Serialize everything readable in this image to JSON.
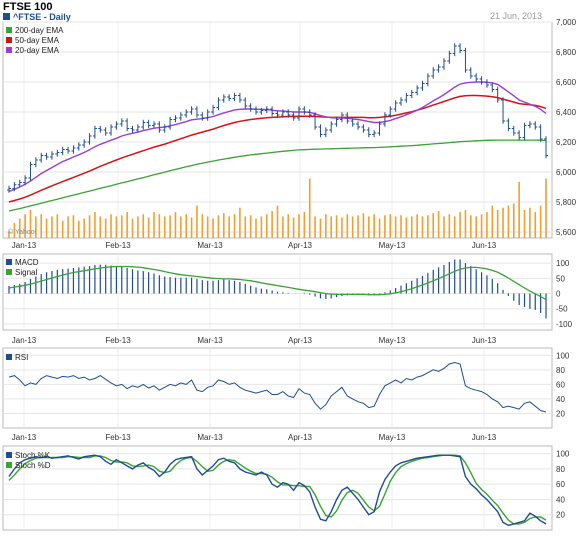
{
  "header": {
    "title": "FTSE 100",
    "symbol": "^FTSE - Daily",
    "date": "21 Jun, 2013",
    "source": "Yahoo!"
  },
  "colors": {
    "price": "#1f4e8c",
    "ema200": "#3aa335",
    "ema50": "#d41414",
    "ema20": "#9b3fd0",
    "volume": "#f0a030",
    "macd": "#1f4e8c",
    "signal": "#3aa335",
    "rsi": "#1f4e8c",
    "stochK": "#1f4e8c",
    "stochD": "#3aa335"
  },
  "chart_data": [
    {
      "type": "ohlc",
      "panel": "price",
      "legend": [
        "200-day EMA",
        "50-day EMA",
        "20-day EMA"
      ],
      "x_ticks": [
        "Jan-13",
        "Feb-13",
        "Mar-13",
        "Apr-13",
        "May-13",
        "Jun-13"
      ],
      "y_ticks": [
        5600,
        5800,
        6000,
        6200,
        6400,
        6600,
        6800,
        7000
      ],
      "y_tick_labels": [
        "5,600",
        "5,800",
        "6,000",
        "6,200",
        "6,400",
        "6,600",
        "6,800",
        "7,000"
      ],
      "ylim": [
        5560,
        7000
      ],
      "close": [
        5890,
        5915,
        5930,
        5960,
        6050,
        6080,
        6110,
        6100,
        6120,
        6130,
        6150,
        6140,
        6160,
        6180,
        6200,
        6240,
        6290,
        6280,
        6260,
        6300,
        6320,
        6340,
        6290,
        6280,
        6300,
        6330,
        6310,
        6320,
        6280,
        6300,
        6350,
        6360,
        6380,
        6400,
        6420,
        6380,
        6360,
        6400,
        6430,
        6480,
        6500,
        6490,
        6510,
        6480,
        6440,
        6420,
        6400,
        6410,
        6420,
        6390,
        6380,
        6400,
        6380,
        6360,
        6420,
        6400,
        6380,
        6300,
        6250,
        6280,
        6320,
        6350,
        6380,
        6340,
        6320,
        6300,
        6280,
        6250,
        6260,
        6320,
        6380,
        6420,
        6460,
        6480,
        6510,
        6530,
        6560,
        6590,
        6640,
        6680,
        6700,
        6740,
        6790,
        6840,
        6810,
        6680,
        6640,
        6620,
        6600,
        6580,
        6550,
        6480,
        6340,
        6290,
        6260,
        6230,
        6310,
        6320,
        6300,
        6220,
        6110
      ],
      "ema200": [
        5740,
        5748,
        5756,
        5765,
        5774,
        5783,
        5792,
        5801,
        5810,
        5819,
        5828,
        5837,
        5846,
        5855,
        5864,
        5873,
        5882,
        5891,
        5900,
        5909,
        5918,
        5927,
        5936,
        5945,
        5954,
        5963,
        5972,
        5981,
        5990,
        5999,
        6008,
        6017,
        6026,
        6035,
        6043,
        6051,
        6059,
        6066,
        6073,
        6080,
        6086,
        6092,
        6098,
        6104,
        6109,
        6114,
        6118,
        6122,
        6126,
        6130,
        6134,
        6138,
        6141,
        6144,
        6147,
        6149,
        6151,
        6152,
        6153,
        6154,
        6155,
        6156,
        6157,
        6158,
        6159,
        6160,
        6161,
        6162,
        6163,
        6164,
        6166,
        6168,
        6170,
        6172,
        6174,
        6176,
        6178,
        6181,
        6184,
        6187,
        6190,
        6193,
        6196,
        6199,
        6202,
        6204,
        6206,
        6208,
        6210,
        6211,
        6212,
        6213,
        6213,
        6213,
        6213,
        6213,
        6213,
        6213,
        6213,
        6212,
        6210
      ],
      "ema50": [
        5800,
        5810,
        5820,
        5832,
        5846,
        5862,
        5878,
        5893,
        5908,
        5922,
        5936,
        5950,
        5964,
        5978,
        5992,
        6006,
        6022,
        6038,
        6052,
        6066,
        6080,
        6094,
        6106,
        6118,
        6130,
        6142,
        6154,
        6166,
        6176,
        6186,
        6198,
        6210,
        6222,
        6234,
        6246,
        6256,
        6266,
        6276,
        6286,
        6298,
        6310,
        6320,
        6330,
        6338,
        6344,
        6350,
        6354,
        6358,
        6362,
        6364,
        6366,
        6368,
        6370,
        6370,
        6372,
        6372,
        6372,
        6370,
        6368,
        6366,
        6364,
        6364,
        6364,
        6364,
        6364,
        6364,
        6364,
        6362,
        6362,
        6364,
        6368,
        6372,
        6378,
        6386,
        6394,
        6402,
        6412,
        6422,
        6434,
        6446,
        6458,
        6470,
        6482,
        6494,
        6504,
        6508,
        6510,
        6510,
        6508,
        6506,
        6502,
        6496,
        6486,
        6476,
        6466,
        6456,
        6452,
        6448,
        6444,
        6436,
        6424
      ],
      "ema20": [
        5870,
        5885,
        5900,
        5918,
        5940,
        5965,
        5990,
        6010,
        6030,
        6050,
        6070,
        6085,
        6100,
        6115,
        6130,
        6148,
        6168,
        6185,
        6198,
        6212,
        6225,
        6240,
        6250,
        6258,
        6266,
        6276,
        6284,
        6292,
        6296,
        6300,
        6308,
        6316,
        6326,
        6336,
        6348,
        6352,
        6356,
        6362,
        6370,
        6382,
        6394,
        6404,
        6414,
        6418,
        6420,
        6420,
        6418,
        6418,
        6416,
        6412,
        6408,
        6406,
        6404,
        6400,
        6400,
        6400,
        6398,
        6388,
        6376,
        6368,
        6362,
        6360,
        6360,
        6358,
        6354,
        6350,
        6344,
        6336,
        6330,
        6330,
        6336,
        6344,
        6356,
        6368,
        6382,
        6396,
        6412,
        6430,
        6452,
        6474,
        6494,
        6516,
        6540,
        6566,
        6586,
        6594,
        6598,
        6600,
        6600,
        6598,
        6594,
        6584,
        6560,
        6534,
        6508,
        6480,
        6466,
        6452,
        6438,
        6418,
        6390
      ],
      "volume": [
        0.06,
        0.14,
        0.18,
        0.22,
        0.26,
        0.2,
        0.22,
        0.18,
        0.2,
        0.22,
        0.16,
        0.2,
        0.21,
        0.16,
        0.18,
        0.21,
        0.24,
        0.2,
        0.18,
        0.22,
        0.2,
        0.21,
        0.24,
        0.18,
        0.2,
        0.22,
        0.19,
        0.24,
        0.22,
        0.2,
        0.21,
        0.24,
        0.2,
        0.22,
        0.19,
        0.3,
        0.22,
        0.2,
        0.18,
        0.21,
        0.23,
        0.2,
        0.22,
        0.28,
        0.2,
        0.21,
        0.18,
        0.2,
        0.22,
        0.25,
        0.3,
        0.2,
        0.22,
        0.19,
        0.22,
        0.24,
        0.55,
        0.2,
        0.18,
        0.22,
        0.2,
        0.21,
        0.19,
        0.22,
        0.2,
        0.21,
        0.23,
        0.2,
        0.22,
        0.18,
        0.21,
        0.22,
        0.2,
        0.21,
        0.19,
        0.2,
        0.22,
        0.2,
        0.21,
        0.23,
        0.25,
        0.2,
        0.22,
        0.2,
        0.24,
        0.26,
        0.21,
        0.2,
        0.22,
        0.24,
        0.3,
        0.26,
        0.28,
        0.3,
        0.32,
        0.52,
        0.26,
        0.28,
        0.24,
        0.3,
        0.55
      ]
    },
    {
      "type": "bar+line",
      "panel": "macd",
      "legend": [
        "MACD",
        "Signal"
      ],
      "y_ticks": [
        -100,
        -50,
        0,
        50,
        100
      ],
      "ylim": [
        -120,
        130
      ],
      "macd": [
        25,
        28,
        32,
        38,
        48,
        56,
        64,
        70,
        74,
        78,
        80,
        82,
        84,
        86,
        88,
        90,
        94,
        95,
        94,
        92,
        90,
        88,
        84,
        80,
        76,
        74,
        70,
        66,
        60,
        56,
        54,
        52,
        52,
        52,
        52,
        48,
        44,
        42,
        42,
        44,
        46,
        44,
        42,
        38,
        32,
        26,
        20,
        16,
        14,
        10,
        6,
        4,
        2,
        0,
        0,
        -2,
        -4,
        -10,
        -16,
        -18,
        -16,
        -12,
        -8,
        -6,
        -4,
        -4,
        -4,
        -6,
        -6,
        -2,
        4,
        10,
        18,
        26,
        34,
        42,
        50,
        58,
        68,
        78,
        86,
        94,
        104,
        112,
        112,
        100,
        90,
        80,
        70,
        60,
        48,
        34,
        12,
        -8,
        -24,
        -38,
        -44,
        -50,
        -54,
        -64,
        -82
      ],
      "signal": [
        18,
        21,
        24,
        27,
        31,
        36,
        41,
        46,
        51,
        56,
        61,
        65,
        69,
        72,
        75,
        78,
        81,
        84,
        86,
        88,
        89,
        89,
        89,
        88,
        87,
        85,
        82,
        79,
        76,
        72,
        68,
        65,
        62,
        60,
        58,
        56,
        54,
        52,
        50,
        49,
        48,
        48,
        47,
        46,
        44,
        42,
        39,
        35,
        32,
        29,
        26,
        23,
        20,
        17,
        14,
        11,
        9,
        6,
        3,
        0,
        -2,
        -3,
        -3,
        -3,
        -3,
        -3,
        -3,
        -4,
        -4,
        -4,
        -3,
        -1,
        2,
        6,
        11,
        16,
        22,
        28,
        35,
        42,
        49,
        57,
        65,
        73,
        80,
        84,
        86,
        86,
        84,
        81,
        76,
        70,
        61,
        51,
        40,
        29,
        18,
        8,
        -1,
        -10,
        -20
      ]
    },
    {
      "type": "line",
      "panel": "rsi",
      "legend": [
        "RSI"
      ],
      "y_ticks": [
        20,
        40,
        60,
        80,
        100
      ],
      "ylim": [
        0,
        110
      ],
      "values": [
        70,
        72,
        66,
        58,
        62,
        60,
        68,
        72,
        70,
        68,
        71,
        70,
        72,
        68,
        70,
        66,
        68,
        72,
        67,
        62,
        58,
        60,
        54,
        58,
        56,
        60,
        55,
        58,
        52,
        56,
        60,
        58,
        62,
        60,
        66,
        52,
        50,
        56,
        58,
        66,
        64,
        60,
        62,
        56,
        52,
        50,
        48,
        50,
        52,
        46,
        46,
        50,
        44,
        42,
        54,
        48,
        46,
        34,
        26,
        32,
        44,
        50,
        56,
        44,
        40,
        36,
        34,
        28,
        30,
        46,
        58,
        62,
        66,
        62,
        68,
        66,
        70,
        72,
        76,
        80,
        78,
        82,
        88,
        90,
        88,
        58,
        54,
        52,
        50,
        46,
        40,
        36,
        28,
        30,
        28,
        26,
        34,
        36,
        30,
        24,
        22
      ]
    },
    {
      "type": "line",
      "panel": "stochastic",
      "legend": [
        "Stoch %K",
        "Stoch %D"
      ],
      "y_ticks": [
        20,
        40,
        60,
        80,
        100
      ],
      "ylim": [
        0,
        110
      ],
      "k": [
        70,
        80,
        88,
        92,
        94,
        96,
        95,
        96,
        94,
        95,
        96,
        97,
        95,
        93,
        96,
        97,
        98,
        96,
        90,
        86,
        92,
        88,
        84,
        80,
        85,
        88,
        82,
        78,
        70,
        76,
        86,
        92,
        94,
        95,
        96,
        80,
        72,
        78,
        84,
        92,
        94,
        90,
        88,
        80,
        76,
        74,
        72,
        76,
        72,
        60,
        56,
        62,
        60,
        52,
        62,
        58,
        50,
        30,
        14,
        12,
        24,
        40,
        52,
        56,
        48,
        40,
        30,
        20,
        24,
        50,
        66,
        76,
        84,
        88,
        90,
        92,
        94,
        95,
        96,
        97,
        98,
        98,
        98,
        97,
        96,
        70,
        60,
        54,
        46,
        40,
        32,
        24,
        10,
        6,
        8,
        10,
        12,
        22,
        18,
        12,
        8
      ],
      "d": [
        65,
        72,
        80,
        87,
        91,
        94,
        95,
        95,
        95,
        95,
        95,
        96,
        96,
        95,
        95,
        95,
        97,
        97,
        95,
        91,
        89,
        89,
        88,
        84,
        83,
        84,
        85,
        83,
        77,
        75,
        77,
        85,
        91,
        94,
        95,
        90,
        83,
        77,
        78,
        85,
        90,
        92,
        91,
        86,
        81,
        77,
        74,
        74,
        73,
        69,
        63,
        59,
        59,
        58,
        58,
        57,
        57,
        46,
        31,
        19,
        17,
        25,
        39,
        49,
        52,
        48,
        39,
        30,
        25,
        31,
        47,
        64,
        75,
        83,
        87,
        90,
        92,
        94,
        95,
        96,
        97,
        98,
        98,
        98,
        97,
        88,
        75,
        61,
        53,
        47,
        39,
        32,
        22,
        13,
        8,
        8,
        10,
        15,
        17,
        17,
        13
      ]
    }
  ]
}
